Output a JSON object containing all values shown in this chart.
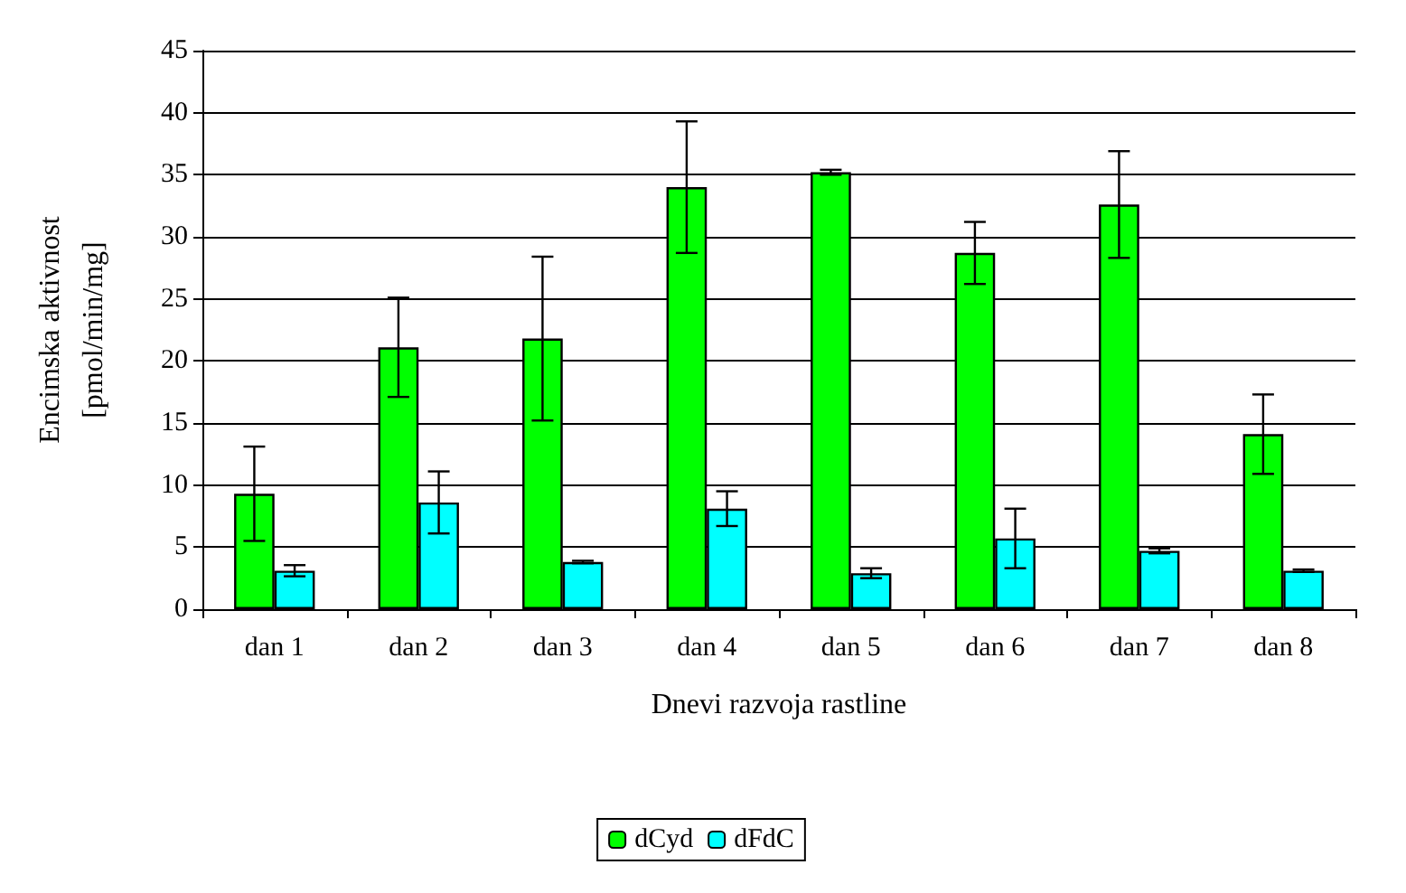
{
  "chart_data": {
    "type": "bar",
    "xlabel": "Dnevi razvoja rastline",
    "ylabel": "Encimska aktivnost\n[pmol/min/mg]",
    "categories": [
      "dan 1",
      "dan 2",
      "dan 3",
      "dan 4",
      "dan 5",
      "dan 6",
      "dan 7",
      "dan 8"
    ],
    "series": [
      {
        "name": "dCyd",
        "color": "#00ff00",
        "values": [
          9.3,
          21.1,
          21.8,
          34.0,
          35.2,
          28.7,
          32.6,
          14.1
        ],
        "errors": [
          3.8,
          4.0,
          6.6,
          5.3,
          0.2,
          2.5,
          4.3,
          3.2
        ]
      },
      {
        "name": "dFdC",
        "color": "#00ffff",
        "values": [
          3.1,
          8.6,
          3.8,
          8.1,
          2.9,
          5.7,
          4.7,
          3.1
        ],
        "errors": [
          0.45,
          2.5,
          0.1,
          1.4,
          0.4,
          2.4,
          0.2,
          0.1
        ]
      }
    ],
    "ylim": [
      0,
      45
    ],
    "yticks": [
      0,
      5,
      10,
      15,
      20,
      25,
      30,
      35,
      40,
      45
    ],
    "grid": "y",
    "legend": "bottom"
  }
}
